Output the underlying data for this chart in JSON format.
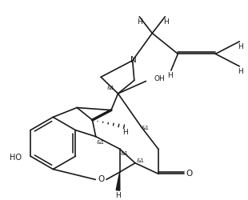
{
  "bg_color": "#ffffff",
  "line_color": "#1a1a1a",
  "lw": 1.2,
  "fig_width": 3.1,
  "fig_height": 2.5,
  "dpi": 100,
  "xlim": [
    0,
    10
  ],
  "ylim": [
    0,
    8
  ]
}
